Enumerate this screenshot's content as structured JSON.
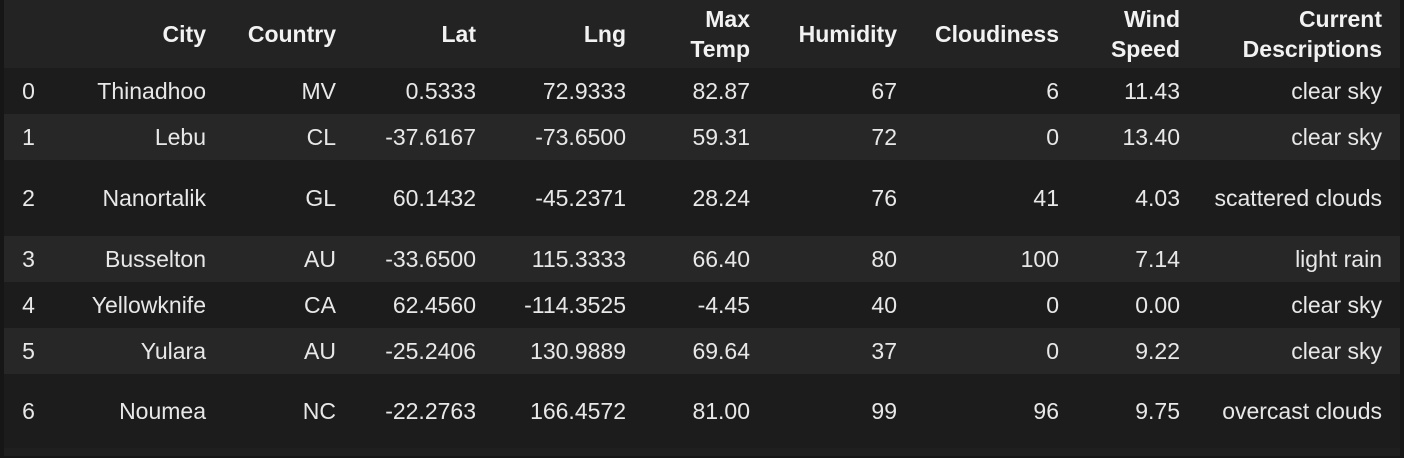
{
  "table": {
    "columns": [
      "",
      "City",
      "Country",
      "Lat",
      "Lng",
      "Max Temp",
      "Humidity",
      "Cloudiness",
      "Wind Speed",
      "Current Descriptions"
    ],
    "rows": [
      {
        "index": "0",
        "city": "Thinadhoo",
        "country": "MV",
        "lat": "0.5333",
        "lng": "72.9333",
        "max_temp": "82.87",
        "humidity": "67",
        "cloudiness": "6",
        "wind_speed": "11.43",
        "description": "clear sky"
      },
      {
        "index": "1",
        "city": "Lebu",
        "country": "CL",
        "lat": "-37.6167",
        "lng": "-73.6500",
        "max_temp": "59.31",
        "humidity": "72",
        "cloudiness": "0",
        "wind_speed": "13.40",
        "description": "clear sky"
      },
      {
        "index": "2",
        "city": "Nanortalik",
        "country": "GL",
        "lat": "60.1432",
        "lng": "-45.2371",
        "max_temp": "28.24",
        "humidity": "76",
        "cloudiness": "41",
        "wind_speed": "4.03",
        "description": "scattered clouds"
      },
      {
        "index": "3",
        "city": "Busselton",
        "country": "AU",
        "lat": "-33.6500",
        "lng": "115.3333",
        "max_temp": "66.40",
        "humidity": "80",
        "cloudiness": "100",
        "wind_speed": "7.14",
        "description": "light rain"
      },
      {
        "index": "4",
        "city": "Yellowknife",
        "country": "CA",
        "lat": "62.4560",
        "lng": "-114.3525",
        "max_temp": "-4.45",
        "humidity": "40",
        "cloudiness": "0",
        "wind_speed": "0.00",
        "description": "clear sky"
      },
      {
        "index": "5",
        "city": "Yulara",
        "country": "AU",
        "lat": "-25.2406",
        "lng": "130.9889",
        "max_temp": "69.64",
        "humidity": "37",
        "cloudiness": "0",
        "wind_speed": "9.22",
        "description": "clear sky"
      },
      {
        "index": "6",
        "city": "Noumea",
        "country": "NC",
        "lat": "-22.2763",
        "lng": "166.4572",
        "max_temp": "81.00",
        "humidity": "99",
        "cloudiness": "96",
        "wind_speed": "9.75",
        "description": "overcast clouds"
      }
    ]
  },
  "colors": {
    "background": "#161616",
    "header_bg": "#232323",
    "row_odd_bg": "#1c1c1c",
    "row_even_bg": "#272727",
    "text": "#e8e8e8"
  }
}
